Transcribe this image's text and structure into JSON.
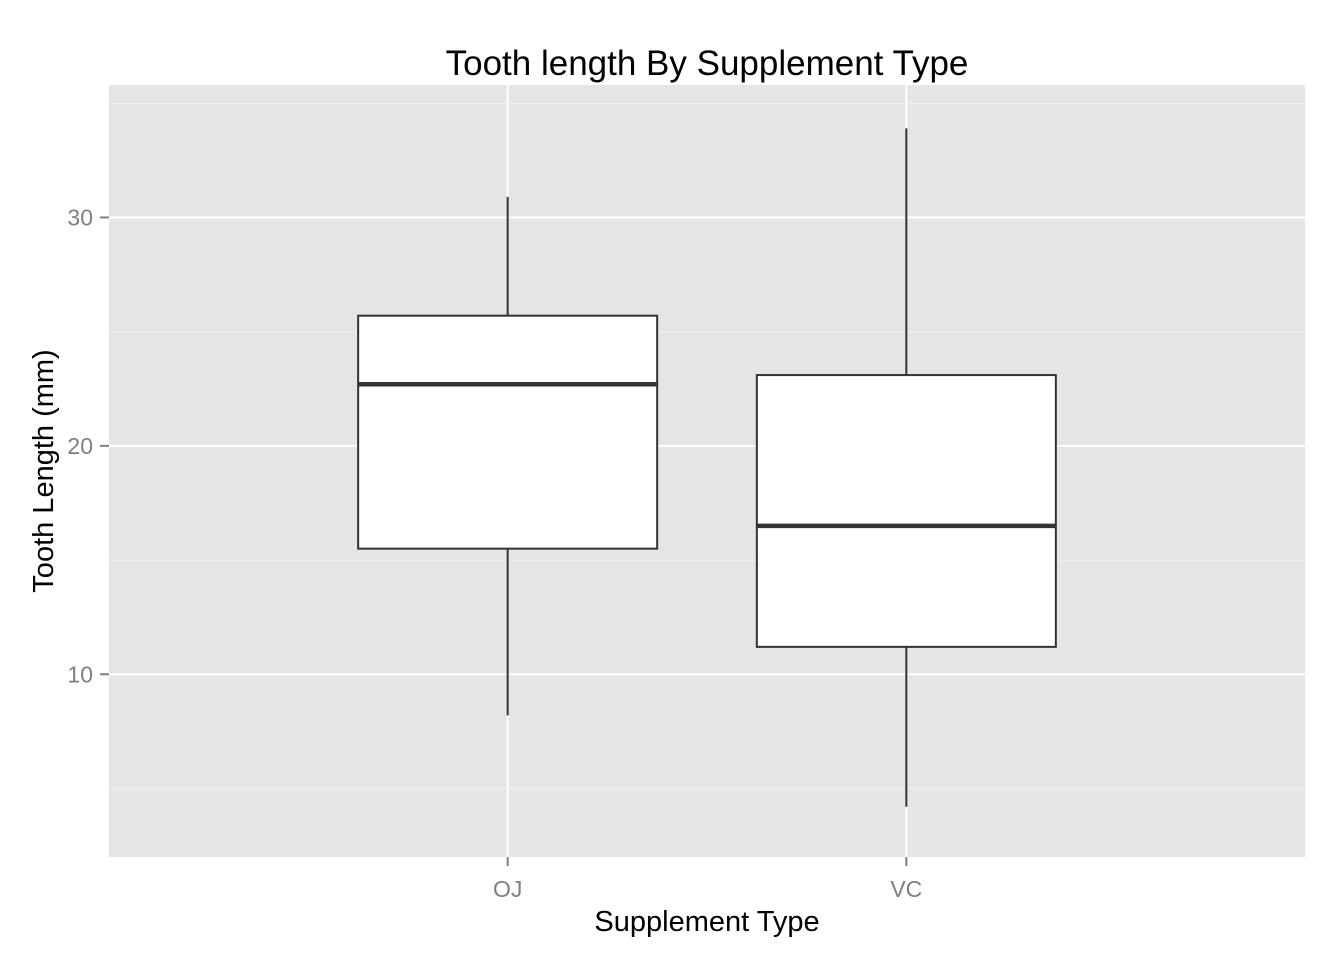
{
  "chart_data": {
    "type": "box",
    "title": "Tooth length By Supplement Type",
    "xlabel": "Supplement Type",
    "ylabel": "Tooth Length (mm)",
    "categories": [
      "OJ",
      "VC"
    ],
    "boxes": [
      {
        "category": "OJ",
        "min": 8.2,
        "q1": 15.5,
        "median": 22.7,
        "q3": 25.7,
        "max": 30.9
      },
      {
        "category": "VC",
        "min": 4.2,
        "q1": 11.2,
        "median": 16.5,
        "q3": 23.1,
        "max": 33.9
      }
    ],
    "ylim": [
      2,
      35.8
    ],
    "yticks": [
      10,
      20,
      30
    ],
    "ytick_labels": [
      "10",
      "20",
      "30"
    ],
    "grid": true,
    "colors": {
      "panel_background": "#e5e5e5",
      "grid_major": "#ffffff",
      "grid_minor": "#f2f2f2",
      "box_fill": "#ffffff",
      "box_stroke": "#333333",
      "tick_text": "#7f7f7f"
    }
  }
}
